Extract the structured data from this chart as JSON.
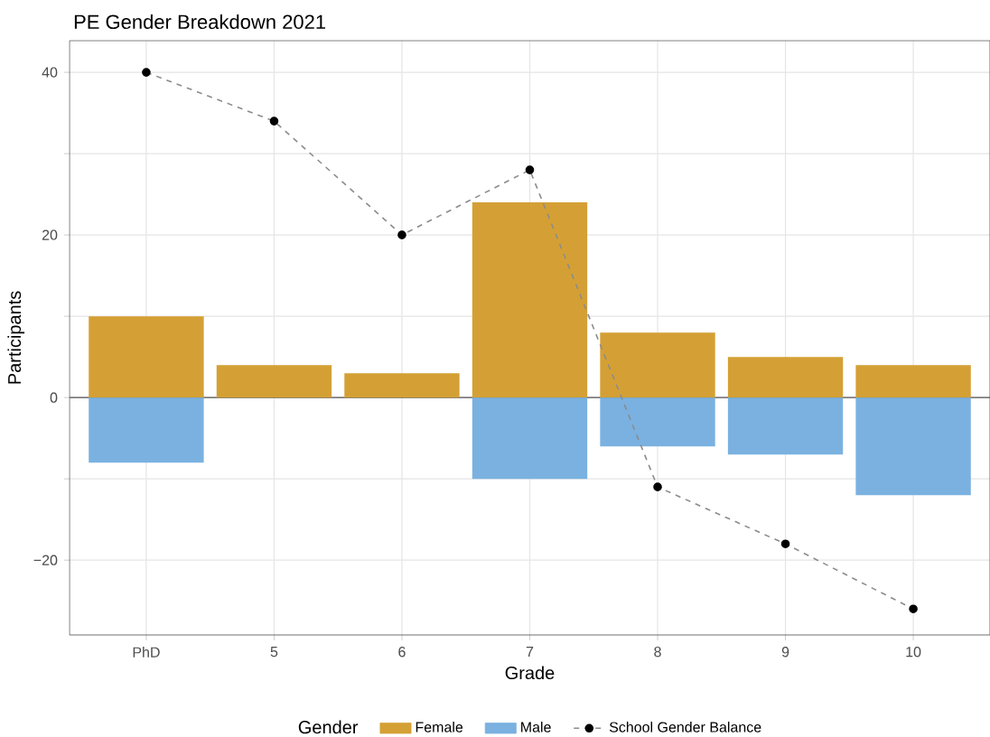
{
  "chart_data": {
    "type": "bar",
    "title": "PE Gender Breakdown 2021",
    "xlabel": "Grade",
    "ylabel": "Participants",
    "legend_title": "Gender",
    "categories": [
      "PhD",
      "5",
      "6",
      "7",
      "8",
      "9",
      "10"
    ],
    "series": [
      {
        "name": "Female",
        "color": "#d4a035",
        "values": [
          10,
          4,
          3,
          24,
          8,
          5,
          4
        ]
      },
      {
        "name": "Male",
        "color": "#7ab1e0",
        "values": [
          -8,
          null,
          null,
          -10,
          -6,
          -7,
          -12
        ]
      },
      {
        "name": "School Gender Balance",
        "type": "line",
        "color": "#8c8c8c",
        "line_style": "dashed",
        "marker": "circle",
        "values": [
          40,
          34,
          20,
          28,
          -11,
          -18,
          -26
        ]
      }
    ],
    "ylim": [
      -29.2,
      43.9
    ],
    "yticks": [
      {
        "value": -20,
        "label": "−20"
      },
      {
        "value": -10,
        "label": null
      },
      0,
      {
        "value": 10,
        "label": null
      },
      20,
      {
        "value": 30,
        "label": null
      },
      40
    ],
    "ref_lines": [
      {
        "axis": "y",
        "value": 0,
        "color": "#555555"
      }
    ],
    "grid": true,
    "legend": "bottom",
    "stacked": true
  }
}
